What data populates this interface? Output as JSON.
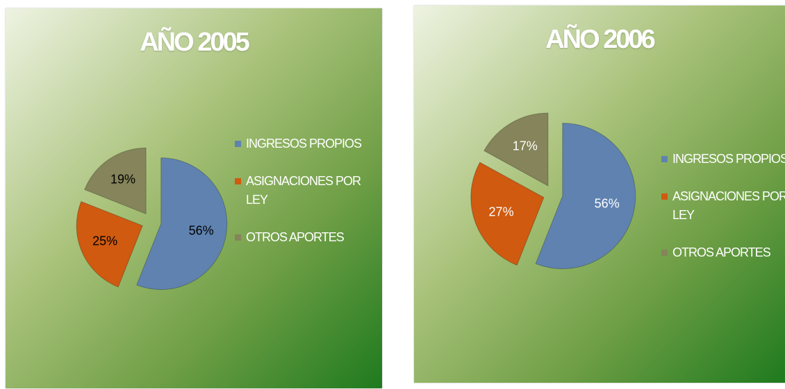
{
  "chart_data": [
    {
      "type": "pie",
      "title": "AÑO 2005",
      "categories": [
        "INGRESOS PROPIOS",
        "ASIGNACIONES POR LEY",
        "OTROS APORTES"
      ],
      "values": [
        56,
        25,
        19
      ],
      "value_labels": [
        "56%",
        "25%",
        "19%"
      ],
      "colors": [
        "#5f82b0",
        "#cf5a10",
        "#85845a"
      ]
    },
    {
      "type": "pie",
      "title": "AÑO 2006",
      "categories": [
        "INGRESOS PROPIOS",
        "ASIGNACIONES POR LEY",
        "OTROS APORTES"
      ],
      "values": [
        56,
        27,
        17
      ],
      "value_labels": [
        "56%",
        "27%",
        "17%"
      ],
      "colors": [
        "#5f82b0",
        "#cf5a10",
        "#85845a"
      ]
    }
  ]
}
